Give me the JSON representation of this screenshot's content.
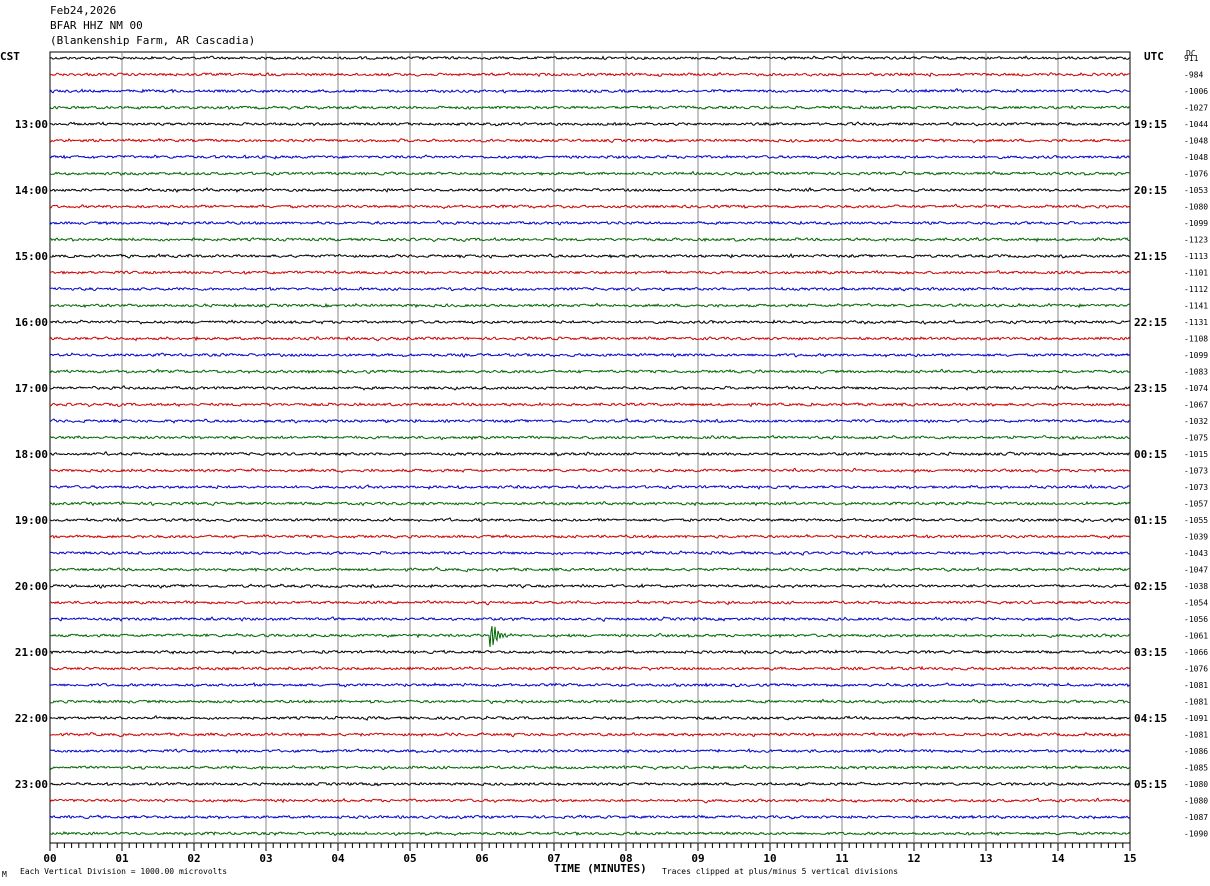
{
  "header": {
    "date": "Feb24,2026",
    "station": "BFAR HHZ NM 00",
    "location": "(Blankenship Farm, AR Cascadia)"
  },
  "left_zone_label": "CST",
  "right_zone_label": "UTC",
  "dc_label": "DC",
  "footer": {
    "scale_note": "Each Vertical Division = 1000.00 microvolts",
    "clip_note": "Traces clipped at plus/minus 5 vertical divisions",
    "corner_mark": "M"
  },
  "colors": {
    "black": "#000000",
    "red": "#cc0000",
    "blue": "#0000cc",
    "green": "#006600",
    "grid": "#888888"
  },
  "chart_data": {
    "type": "line",
    "xlabel": "TIME (MINUTES)",
    "xlim": [
      0,
      15
    ],
    "x_ticks": [
      "00",
      "01",
      "02",
      "03",
      "04",
      "05",
      "06",
      "07",
      "08",
      "09",
      "10",
      "11",
      "12",
      "13",
      "14",
      "15"
    ],
    "trace_colors": [
      "black",
      "red",
      "blue",
      "green"
    ],
    "row_count": 48,
    "left_hour_labels": [
      "13:00",
      "14:00",
      "15:00",
      "16:00",
      "17:00",
      "18:00",
      "19:00",
      "20:00",
      "21:00",
      "22:00",
      "23:00"
    ],
    "right_hour_labels": [
      "19:15",
      "20:15",
      "21:15",
      "22:15",
      "23:15",
      "00:15",
      "01:15",
      "02:15",
      "03:15",
      "04:15",
      "05:15"
    ],
    "dc_offsets": [
      "911",
      "-984",
      "-1006",
      "-1027",
      "-1044",
      "-1048",
      "-1048",
      "-1076",
      "-1053",
      "-1080",
      "-1099",
      "-1123",
      "-1113",
      "-1101",
      "-1112",
      "-1141",
      "-1131",
      "-1108",
      "-1099",
      "-1083",
      "-1074",
      "-1067",
      "-1032",
      "-1075",
      "-1015",
      "-1073",
      "-1073",
      "-1057",
      "-1055",
      "-1039",
      "-1043",
      "-1047",
      "-1038",
      "-1054",
      "-1056",
      "-1061",
      "-1066",
      "-1076",
      "-1081",
      "-1081",
      "-1091",
      "-1081",
      "-1086",
      "-1085",
      "-1080",
      "-1080",
      "-1087",
      "-1090"
    ],
    "event": {
      "row": 35,
      "minute": 6.1,
      "label": ""
    }
  }
}
